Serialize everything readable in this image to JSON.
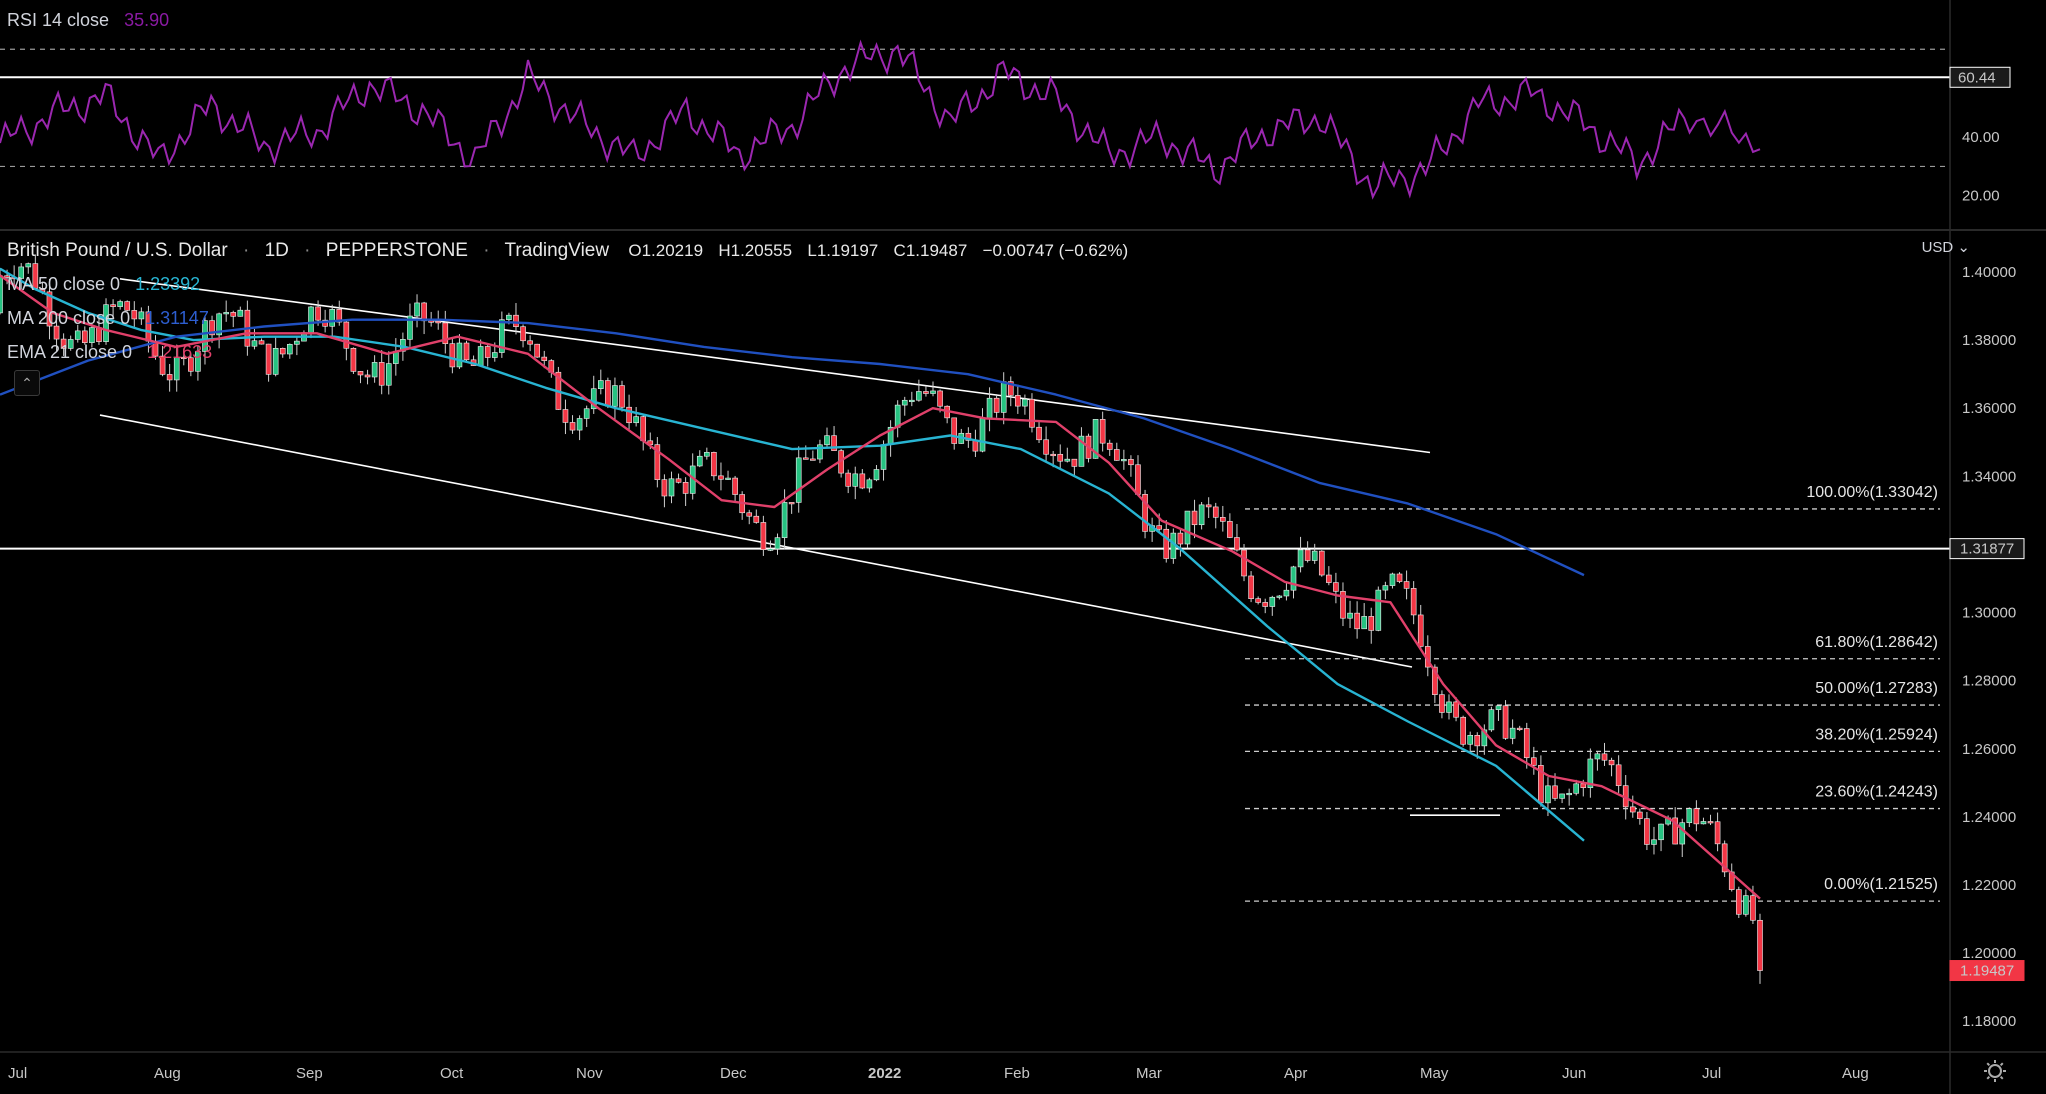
{
  "rsi_panel": {
    "label": "RSI 14 close",
    "value": "35.90",
    "value_color": "#a020c0",
    "axis_ticks": [
      "40.00",
      "20.00"
    ],
    "level_badge": "60.44"
  },
  "header": {
    "symbol": "British Pound / U.S. Dollar",
    "interval": "1D",
    "exchange": "PEPPERSTONE",
    "source": "TradingView",
    "open": "O1.20219",
    "high": "H1.20555",
    "low": "L1.19197",
    "close": "C1.19487",
    "change": "−0.00747 (−0.62%)"
  },
  "indicators": [
    {
      "label": "MA 50 close 0",
      "value": "1.23392",
      "color": "#28b4d2"
    },
    {
      "label": "MA 200 close 0",
      "value": "1.31147",
      "color": "#2050c0"
    },
    {
      "label": "EMA 21 close 0",
      "value": "1.21633",
      "color": "#e0406a"
    }
  ],
  "currency_selector": "USD",
  "price_badges": [
    {
      "value": "1.31877",
      "style": "white"
    },
    {
      "value": "1.19487",
      "style": "red"
    }
  ],
  "fibonacci_levels": [
    {
      "label": "100.00%(1.33042)",
      "price": 1.33042
    },
    {
      "label": "61.80%(1.28642)",
      "price": 1.28642
    },
    {
      "label": "50.00%(1.27283)",
      "price": 1.27283
    },
    {
      "label": "38.20%(1.25924)",
      "price": 1.25924
    },
    {
      "label": "23.60%(1.24243)",
      "price": 1.24243
    },
    {
      "label": "0.00%(1.21525)",
      "price": 1.21525
    }
  ],
  "chart_data": {
    "type": "line",
    "x_axis_labels": [
      "Jul",
      "Aug",
      "Sep",
      "Oct",
      "Nov",
      "Dec",
      "2022",
      "Feb",
      "Mar",
      "Apr",
      "May",
      "Jun",
      "Jul",
      "Aug"
    ],
    "y_axis_labels": [
      "1.40000",
      "1.38000",
      "1.36000",
      "1.34000",
      "1.32000",
      "1.30000",
      "1.28000",
      "1.26000",
      "1.24000",
      "1.22000",
      "1.20000",
      "1.18000"
    ],
    "ylim": [
      1.173,
      1.405
    ],
    "series": [
      {
        "name": "MA 50 close 0",
        "color": "#28b4d2",
        "x": [
          0,
          0.02,
          0.05,
          0.08,
          0.11,
          0.15,
          0.19,
          0.23,
          0.27,
          0.31,
          0.35,
          0.4,
          0.45,
          0.5,
          0.54,
          0.58,
          0.63,
          0.67,
          0.72,
          0.76,
          0.8,
          0.85,
          0.9
        ],
        "y": [
          1.401,
          1.395,
          1.388,
          1.383,
          1.38,
          1.381,
          1.381,
          1.378,
          1.373,
          1.366,
          1.36,
          1.354,
          1.348,
          1.349,
          1.352,
          1.348,
          1.335,
          1.319,
          1.296,
          1.279,
          1.268,
          1.255,
          1.233
        ]
      },
      {
        "name": "MA 200 close 0",
        "color": "#2050c0",
        "x": [
          0,
          0.05,
          0.1,
          0.15,
          0.2,
          0.25,
          0.3,
          0.35,
          0.4,
          0.45,
          0.5,
          0.55,
          0.6,
          0.65,
          0.7,
          0.75,
          0.8,
          0.85,
          0.9
        ],
        "y": [
          1.364,
          1.374,
          1.381,
          1.384,
          1.386,
          1.386,
          1.385,
          1.382,
          1.378,
          1.375,
          1.373,
          1.37,
          1.364,
          1.357,
          1.348,
          1.338,
          1.332,
          1.323,
          1.311
        ]
      },
      {
        "name": "EMA 21 close 0",
        "color": "#e0406a",
        "x": [
          0,
          0.03,
          0.06,
          0.1,
          0.14,
          0.18,
          0.22,
          0.26,
          0.3,
          0.34,
          0.38,
          0.41,
          0.44,
          0.47,
          0.5,
          0.53,
          0.56,
          0.6,
          0.63,
          0.66,
          0.7,
          0.73,
          0.76,
          0.79,
          0.82,
          0.85,
          0.88,
          0.91,
          0.95,
          1.0
        ],
        "y": [
          1.399,
          1.388,
          1.383,
          1.378,
          1.382,
          1.382,
          1.376,
          1.381,
          1.376,
          1.36,
          1.345,
          1.333,
          1.331,
          1.342,
          1.352,
          1.36,
          1.357,
          1.356,
          1.344,
          1.327,
          1.318,
          1.309,
          1.305,
          1.303,
          1.279,
          1.261,
          1.252,
          1.249,
          1.239,
          1.216
        ]
      }
    ],
    "rsi": {
      "x": [
        0,
        0.03,
        0.06,
        0.09,
        0.12,
        0.15,
        0.18,
        0.21,
        0.24,
        0.27,
        0.3,
        0.33,
        0.36,
        0.39,
        0.42,
        0.45,
        0.48,
        0.51,
        0.54,
        0.57,
        0.6,
        0.63,
        0.66,
        0.69,
        0.72,
        0.75,
        0.78,
        0.81,
        0.84,
        0.87,
        0.9,
        0.93,
        0.96,
        1.0
      ],
      "y": [
        38,
        48,
        54,
        32,
        51,
        37,
        42,
        58,
        49,
        32,
        60,
        45,
        33,
        49,
        34,
        44,
        64,
        70,
        45,
        62,
        53,
        34,
        40,
        29,
        42,
        47,
        23,
        29,
        51,
        55,
        45,
        31,
        48,
        35.9
      ],
      "levels": [
        70,
        60.44,
        30
      ]
    }
  }
}
